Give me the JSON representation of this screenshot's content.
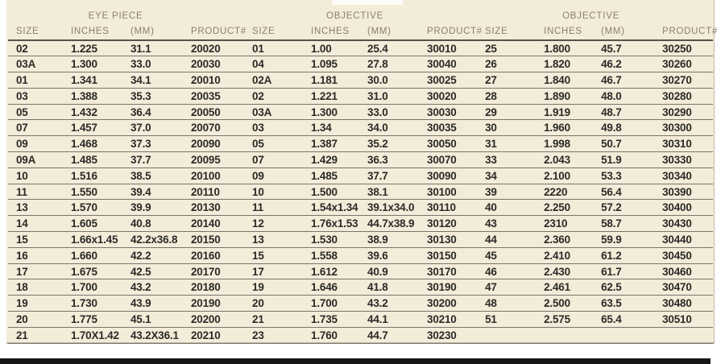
{
  "page": {
    "kind": "scanned catalog specification table",
    "colors": {
      "page_background": "#f3ecd9",
      "header_text": "#8b7f6d",
      "data_text": "#2a2a27",
      "row_line": "#77756c",
      "header_underline": "#55534c",
      "bottom_bar": "#161614"
    }
  },
  "table": {
    "groups": [
      {
        "title": "EYE PIECE",
        "columns": [
          "SIZE",
          "INCHES",
          "(MM)",
          "PRODUCT#"
        ]
      },
      {
        "title": "OBJECTIVE",
        "columns": [
          "SIZE",
          "INCHES",
          "(MM)",
          "PRODUCT#"
        ]
      },
      {
        "title": "OBJECTIVE",
        "columns": [
          "SIZE",
          "INCHES",
          "(MM)",
          "PRODUCT#"
        ]
      }
    ],
    "column_keys": [
      "size",
      "inches",
      "mm",
      "product"
    ],
    "rows": [
      {
        "eyepiece": [
          "02",
          "1.225",
          "31.1",
          "20020"
        ],
        "objective1": [
          "01",
          "1.00",
          "25.4",
          "30010"
        ],
        "objective2": [
          "25",
          "1.800",
          "45.7",
          "30250"
        ]
      },
      {
        "eyepiece": [
          "03A",
          "1.300",
          "33.0",
          "20030"
        ],
        "objective1": [
          "04",
          "1.095",
          "27.8",
          "30040"
        ],
        "objective2": [
          "26",
          "1.820",
          "46.2",
          "30260"
        ]
      },
      {
        "eyepiece": [
          "01",
          "1.341",
          "34.1",
          "20010"
        ],
        "objective1": [
          "02A",
          "1.181",
          "30.0",
          "30025"
        ],
        "objective2": [
          "27",
          "1.840",
          "46.7",
          "30270"
        ]
      },
      {
        "eyepiece": [
          "03",
          "1.388",
          "35.3",
          "20035"
        ],
        "objective1": [
          "02",
          "1.221",
          "31.0",
          "30020"
        ],
        "objective2": [
          "28",
          "1.890",
          "48.0",
          "30280"
        ]
      },
      {
        "eyepiece": [
          "05",
          "1.432",
          "36.4",
          "20050"
        ],
        "objective1": [
          "03A",
          "1.300",
          "33.0",
          "30030"
        ],
        "objective2": [
          "29",
          "1.919",
          "48.7",
          "30290"
        ]
      },
      {
        "eyepiece": [
          "07",
          "1.457",
          "37.0",
          "20070"
        ],
        "objective1": [
          "03",
          "1.34",
          "34.0",
          "30035"
        ],
        "objective2": [
          "30",
          "1.960",
          "49.8",
          "30300"
        ]
      },
      {
        "eyepiece": [
          "09",
          "1.468",
          "37.3",
          "20090"
        ],
        "objective1": [
          "05",
          "1.387",
          "35.2",
          "30050"
        ],
        "objective2": [
          "31",
          "1.998",
          "50.7",
          "30310"
        ]
      },
      {
        "eyepiece": [
          "09A",
          "1.485",
          "37.7",
          "20095"
        ],
        "objective1": [
          "07",
          "1.429",
          "36.3",
          "30070"
        ],
        "objective2": [
          "33",
          "2.043",
          "51.9",
          "30330"
        ]
      },
      {
        "eyepiece": [
          "10",
          "1.516",
          "38.5",
          "20100"
        ],
        "objective1": [
          "09",
          "1.485",
          "37.7",
          "30090"
        ],
        "objective2": [
          "34",
          "2.100",
          "53.3",
          "30340"
        ]
      },
      {
        "eyepiece": [
          "11",
          "1.550",
          "39.4",
          "20110"
        ],
        "objective1": [
          "10",
          "1.500",
          "38.1",
          "30100"
        ],
        "objective2": [
          "39",
          "2220",
          "56.4",
          "30390"
        ]
      },
      {
        "eyepiece": [
          "13",
          "1.570",
          "39.9",
          "20130"
        ],
        "objective1": [
          "11",
          "1.54x1.34",
          "39.1x34.0",
          "30110"
        ],
        "objective2": [
          "40",
          "2.250",
          "57.2",
          "30400"
        ]
      },
      {
        "eyepiece": [
          "14",
          "1.605",
          "40.8",
          "20140"
        ],
        "objective1": [
          "12",
          "1.76x1.53",
          "44.7x38.9",
          "30120"
        ],
        "objective2": [
          "43",
          "2310",
          "58.7",
          "30430"
        ]
      },
      {
        "eyepiece": [
          "15",
          "1.66x1.45",
          "42.2x36.8",
          "20150"
        ],
        "objective1": [
          "13",
          "1.530",
          "38.9",
          "30130"
        ],
        "objective2": [
          "44",
          "2.360",
          "59.9",
          "30440"
        ]
      },
      {
        "eyepiece": [
          "16",
          "1.660",
          "42.2",
          "20160"
        ],
        "objective1": [
          "15",
          "1.558",
          "39.6",
          "30150"
        ],
        "objective2": [
          "45",
          "2.410",
          "61.2",
          "30450"
        ]
      },
      {
        "eyepiece": [
          "17",
          "1.675",
          "42.5",
          "20170"
        ],
        "objective1": [
          "17",
          "1.612",
          "40.9",
          "30170"
        ],
        "objective2": [
          "46",
          "2.430",
          "61.7",
          "30460"
        ]
      },
      {
        "eyepiece": [
          "18",
          "1.700",
          "43.2",
          "20180"
        ],
        "objective1": [
          "19",
          "1.646",
          "41.8",
          "30190"
        ],
        "objective2": [
          "47",
          "2.461",
          "62.5",
          "30470"
        ]
      },
      {
        "eyepiece": [
          "19",
          "1.730",
          "43.9",
          "20190"
        ],
        "objective1": [
          "20",
          "1.700",
          "43.2",
          "30200"
        ],
        "objective2": [
          "48",
          "2.500",
          "63.5",
          "30480"
        ]
      },
      {
        "eyepiece": [
          "20",
          "1.775",
          "45.1",
          "20200"
        ],
        "objective1": [
          "21",
          "1.735",
          "44.1",
          "30210"
        ],
        "objective2": [
          "51",
          "2.575",
          "65.4",
          "30510"
        ]
      },
      {
        "eyepiece": [
          "21",
          "1.70X1.42",
          "43.2X36.1",
          "20210"
        ],
        "objective1": [
          "23",
          "1.760",
          "44.7",
          "30230"
        ],
        "objective2": [
          "",
          "",
          "",
          ""
        ]
      }
    ]
  }
}
